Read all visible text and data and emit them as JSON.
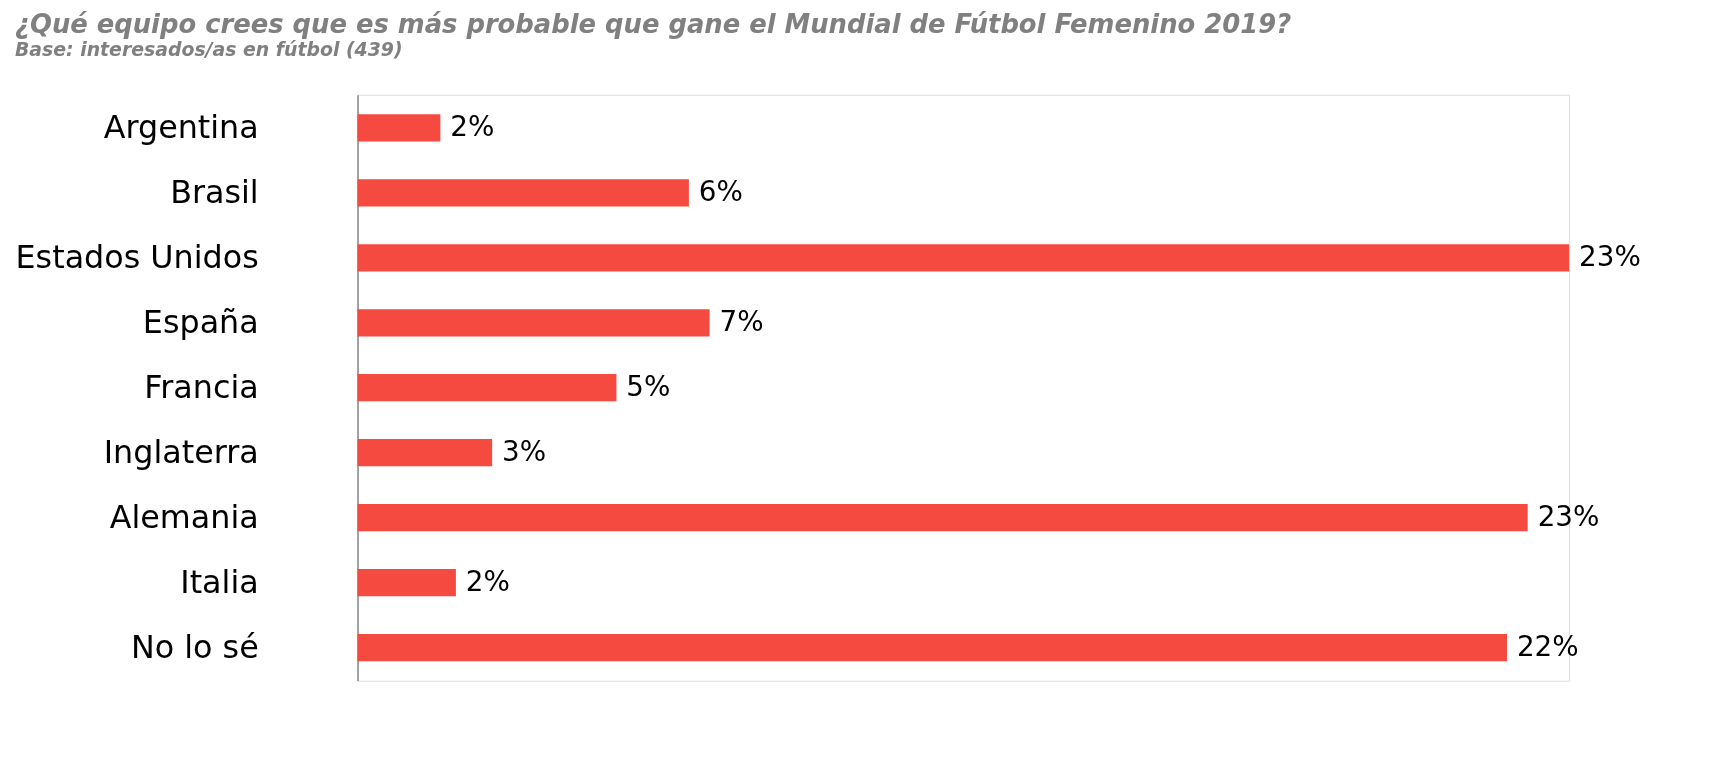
{
  "chart_data": {
    "type": "bar",
    "orientation": "horizontal",
    "title": "¿Qué equipo crees que es más probable que gane el Mundial de Fútbol Femenino 2019?",
    "subtitle": "Base: interesados/as en fútbol (439)",
    "categories": [
      "Argentina",
      "Brasil",
      "Estados Unidos",
      "España",
      "Francia",
      "Inglaterra",
      "Alemania",
      "Italia",
      "No lo sé"
    ],
    "values": [
      1.6,
      6.4,
      23.4,
      6.8,
      5.0,
      2.6,
      22.6,
      1.9,
      22.2
    ],
    "value_labels": [
      "2%",
      "6%",
      "23%",
      "7%",
      "5%",
      "3%",
      "23%",
      "2%",
      "22%"
    ],
    "color": "#f44a40",
    "grid": false,
    "tick_labels": "y"
  }
}
